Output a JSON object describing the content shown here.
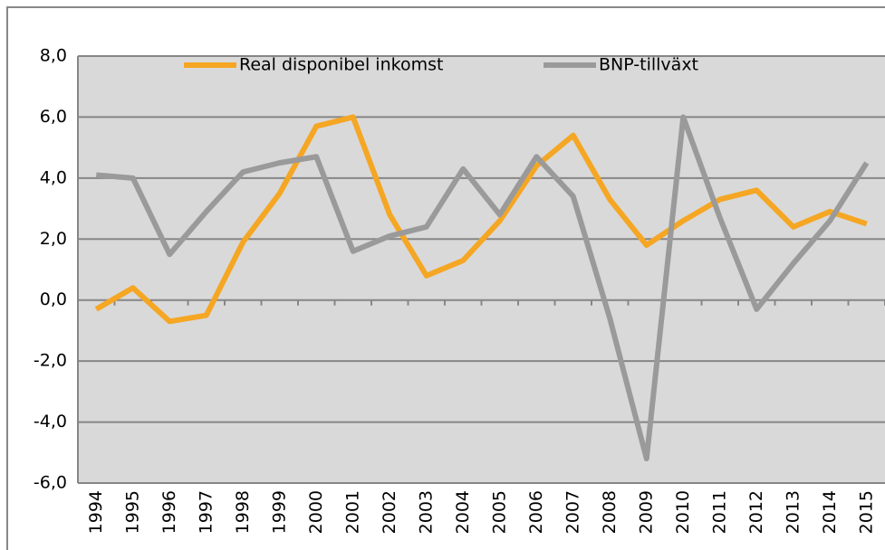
{
  "chart_data": {
    "type": "line",
    "categories": [
      "1994",
      "1995",
      "1996",
      "1997",
      "1998",
      "1999",
      "2000",
      "2001",
      "2002",
      "2003",
      "2004",
      "2005",
      "2006",
      "2007",
      "2008",
      "2009",
      "2010",
      "2011",
      "2012",
      "2013",
      "2014",
      "2015"
    ],
    "series": [
      {
        "name": "Real disponibel inkomst",
        "color": "#f5a623",
        "values": [
          -0.3,
          0.4,
          -0.7,
          -0.5,
          1.9,
          3.5,
          5.7,
          6.0,
          2.8,
          0.8,
          1.3,
          2.6,
          4.4,
          5.4,
          3.3,
          1.8,
          2.6,
          3.3,
          3.6,
          2.4,
          2.9,
          2.5
        ]
      },
      {
        "name": "BNP-tillväxt",
        "color": "#9a9a9a",
        "values": [
          4.1,
          4.0,
          1.5,
          2.9,
          4.2,
          4.5,
          4.7,
          1.6,
          2.1,
          2.4,
          4.3,
          2.8,
          4.7,
          3.4,
          -0.6,
          -5.2,
          6.0,
          2.7,
          -0.3,
          1.2,
          2.6,
          4.5
        ]
      }
    ],
    "ylim": [
      -6,
      8
    ],
    "yticks": [
      {
        "value": -6,
        "label": "-6,0"
      },
      {
        "value": -4,
        "label": "-4,0"
      },
      {
        "value": -2,
        "label": "-2,0"
      },
      {
        "value": 0,
        "label": "0,0"
      },
      {
        "value": 2,
        "label": "2,0"
      },
      {
        "value": 4,
        "label": "4,0"
      },
      {
        "value": 6,
        "label": "6,0"
      },
      {
        "value": 8,
        "label": "8,0"
      }
    ],
    "grid": true,
    "legend": "top"
  }
}
